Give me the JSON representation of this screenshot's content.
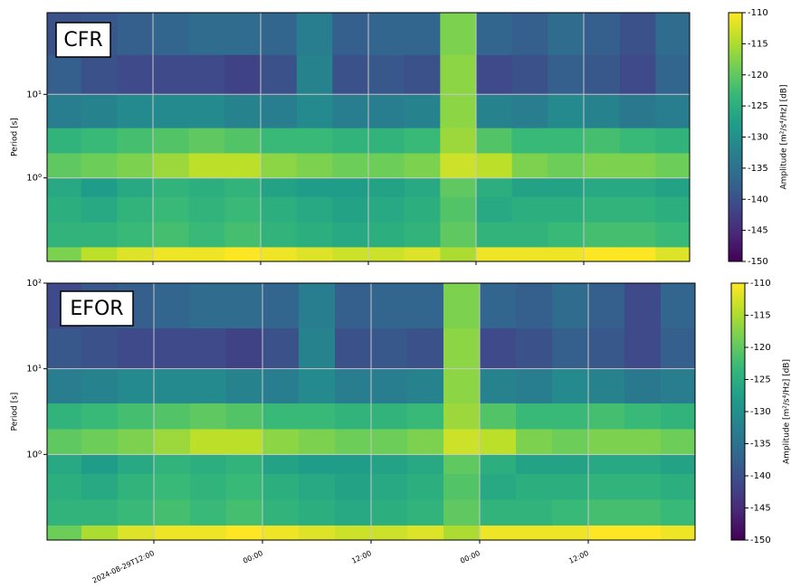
{
  "chart_data": [
    {
      "type": "heatmap",
      "label": "CFR",
      "ylabel": "Period [s]",
      "colorbar_label": "Amplitude [m²/s⁴/Hz] [dB]",
      "colormap": "viridis",
      "log_y": true,
      "grid": true,
      "xlim": [
        "2024-08-29T00:12",
        "2024-08-31T23:48"
      ],
      "xticks": [
        "2024-08-29T12:00",
        "2024-08-30T00:00",
        "2024-08-30T12:00",
        "2024-08-31T00:00",
        "2024-08-31T12:00"
      ],
      "ylim": [
        0.1,
        95
      ],
      "yticks": [
        {
          "value": 1,
          "label": "10⁰"
        },
        {
          "value": 10,
          "label": "10¹"
        }
      ],
      "clim": [
        -150,
        -110
      ],
      "cticks": [
        -150,
        -145,
        -140,
        -135,
        -130,
        -125,
        -120,
        -115,
        -110
      ],
      "xbins": [
        "2024-08-29T00:00",
        "2024-08-29T04:00",
        "2024-08-29T08:00",
        "2024-08-29T12:00",
        "2024-08-29T16:00",
        "2024-08-29T20:00",
        "2024-08-30T00:00",
        "2024-08-30T04:00",
        "2024-08-30T08:00",
        "2024-08-30T12:00",
        "2024-08-30T16:00",
        "2024-08-30T20:00",
        "2024-08-31T00:00",
        "2024-08-31T04:00",
        "2024-08-31T08:00",
        "2024-08-31T12:00",
        "2024-08-31T16:00",
        "2024-08-31T20:00",
        "2024-09-01T00:00"
      ],
      "ybins": [
        0.1,
        0.15,
        0.3,
        0.6,
        1,
        2,
        4,
        10,
        30,
        100
      ],
      "z": [
        [
          -118,
          -114,
          -112,
          -111,
          -111,
          -110,
          -111,
          -112,
          -113,
          -113,
          -112,
          -115,
          -111,
          -111,
          -111,
          -110,
          -110,
          -112
        ],
        [
          -124,
          -124,
          -123,
          -122,
          -123,
          -122,
          -124,
          -125,
          -126,
          -125,
          -124,
          -120,
          -124,
          -124,
          -123,
          -122,
          -122,
          -123
        ],
        [
          -125,
          -126,
          -124,
          -123,
          -124,
          -123,
          -125,
          -126,
          -127,
          -126,
          -125,
          -121,
          -126,
          -125,
          -125,
          -124,
          -124,
          -125
        ],
        [
          -126,
          -128,
          -126,
          -124,
          -125,
          -124,
          -127,
          -128,
          -128,
          -127,
          -126,
          -120,
          -125,
          -127,
          -127,
          -126,
          -126,
          -127
        ],
        [
          -120,
          -119,
          -118,
          -116,
          -114,
          -114,
          -117,
          -118,
          -119,
          -119,
          -118,
          -113,
          -114,
          -118,
          -119,
          -118,
          -118,
          -119
        ],
        [
          -124,
          -123,
          -122,
          -121,
          -120,
          -121,
          -123,
          -123,
          -124,
          -124,
          -123,
          -116,
          -121,
          -123,
          -123,
          -122,
          -123,
          -124
        ],
        [
          -133,
          -132,
          -131,
          -131,
          -131,
          -132,
          -133,
          -131,
          -133,
          -133,
          -132,
          -117,
          -132,
          -133,
          -131,
          -132,
          -134,
          -133
        ],
        [
          -138,
          -140,
          -141,
          -141,
          -141,
          -142,
          -140,
          -132,
          -140,
          -139,
          -140,
          -117,
          -141,
          -140,
          -138,
          -139,
          -141,
          -137
        ],
        [
          -140,
          -139,
          -138,
          -137,
          -136,
          -136,
          -137,
          -133,
          -138,
          -137,
          -137,
          -118,
          -137,
          -138,
          -136,
          -138,
          -140,
          -136
        ]
      ]
    },
    {
      "type": "heatmap",
      "label": "EFOR",
      "ylabel": "Period [s]",
      "colorbar_label": "Amplitude [m²/s⁴/Hz] [dB]",
      "colormap": "viridis",
      "log_y": true,
      "grid": true,
      "xlim": [
        "2024-08-29T00:12",
        "2024-08-31T23:48"
      ],
      "xticks": [
        {
          "value": "2024-08-29T12:00",
          "label": "2024-08-29T12:00"
        },
        {
          "value": "2024-08-30T00:00",
          "label": "00:00"
        },
        {
          "value": "2024-08-30T12:00",
          "label": "12:00"
        },
        {
          "value": "2024-08-31T00:00",
          "label": "00:00"
        },
        {
          "value": "2024-08-31T12:00",
          "label": "12:00"
        }
      ],
      "ylim": [
        0.1,
        100
      ],
      "yticks": [
        {
          "value": 1,
          "label": "10⁰"
        },
        {
          "value": 10,
          "label": "10¹"
        },
        {
          "value": 100,
          "label": "10²"
        }
      ],
      "clim": [
        -150,
        -110
      ],
      "cticks": [
        -150,
        -145,
        -140,
        -135,
        -130,
        -125,
        -120,
        -115,
        -110
      ],
      "xbins": [
        "2024-08-29T00:00",
        "2024-08-29T04:00",
        "2024-08-29T08:00",
        "2024-08-29T12:00",
        "2024-08-29T16:00",
        "2024-08-29T20:00",
        "2024-08-30T00:00",
        "2024-08-30T04:00",
        "2024-08-30T08:00",
        "2024-08-30T12:00",
        "2024-08-30T16:00",
        "2024-08-30T20:00",
        "2024-08-31T00:00",
        "2024-08-31T04:00",
        "2024-08-31T08:00",
        "2024-08-31T12:00",
        "2024-08-31T16:00",
        "2024-08-31T20:00",
        "2024-09-01T00:00"
      ],
      "ybins": [
        0.1,
        0.15,
        0.3,
        0.6,
        1,
        2,
        4,
        10,
        30,
        100
      ],
      "z": [
        [
          -119,
          -115,
          -112,
          -111,
          -111,
          -110,
          -111,
          -112,
          -113,
          -113,
          -112,
          -115,
          -111,
          -111,
          -111,
          -110,
          -110,
          -111
        ],
        [
          -124,
          -124,
          -123,
          -122,
          -123,
          -122,
          -124,
          -125,
          -126,
          -125,
          -124,
          -120,
          -124,
          -124,
          -123,
          -122,
          -122,
          -123
        ],
        [
          -125,
          -126,
          -124,
          -123,
          -124,
          -123,
          -125,
          -126,
          -127,
          -126,
          -125,
          -121,
          -126,
          -125,
          -125,
          -124,
          -124,
          -125
        ],
        [
          -126,
          -128,
          -126,
          -124,
          -125,
          -124,
          -127,
          -128,
          -128,
          -127,
          -126,
          -120,
          -125,
          -127,
          -127,
          -126,
          -126,
          -127
        ],
        [
          -120,
          -119,
          -118,
          -116,
          -114,
          -114,
          -117,
          -118,
          -119,
          -119,
          -118,
          -113,
          -114,
          -118,
          -119,
          -118,
          -118,
          -119
        ],
        [
          -124,
          -123,
          -122,
          -121,
          -120,
          -121,
          -123,
          -123,
          -124,
          -124,
          -123,
          -116,
          -121,
          -123,
          -123,
          -122,
          -123,
          -124
        ],
        [
          -133,
          -132,
          -131,
          -131,
          -131,
          -132,
          -133,
          -131,
          -133,
          -133,
          -132,
          -117,
          -132,
          -133,
          -131,
          -132,
          -134,
          -133
        ],
        [
          -139,
          -140,
          -141,
          -141,
          -141,
          -142,
          -140,
          -132,
          -140,
          -139,
          -140,
          -117,
          -141,
          -140,
          -138,
          -139,
          -141,
          -138
        ],
        [
          -141,
          -139,
          -138,
          -137,
          -136,
          -136,
          -137,
          -133,
          -138,
          -137,
          -137,
          -118,
          -137,
          -138,
          -136,
          -138,
          -141,
          -137
        ]
      ]
    }
  ]
}
